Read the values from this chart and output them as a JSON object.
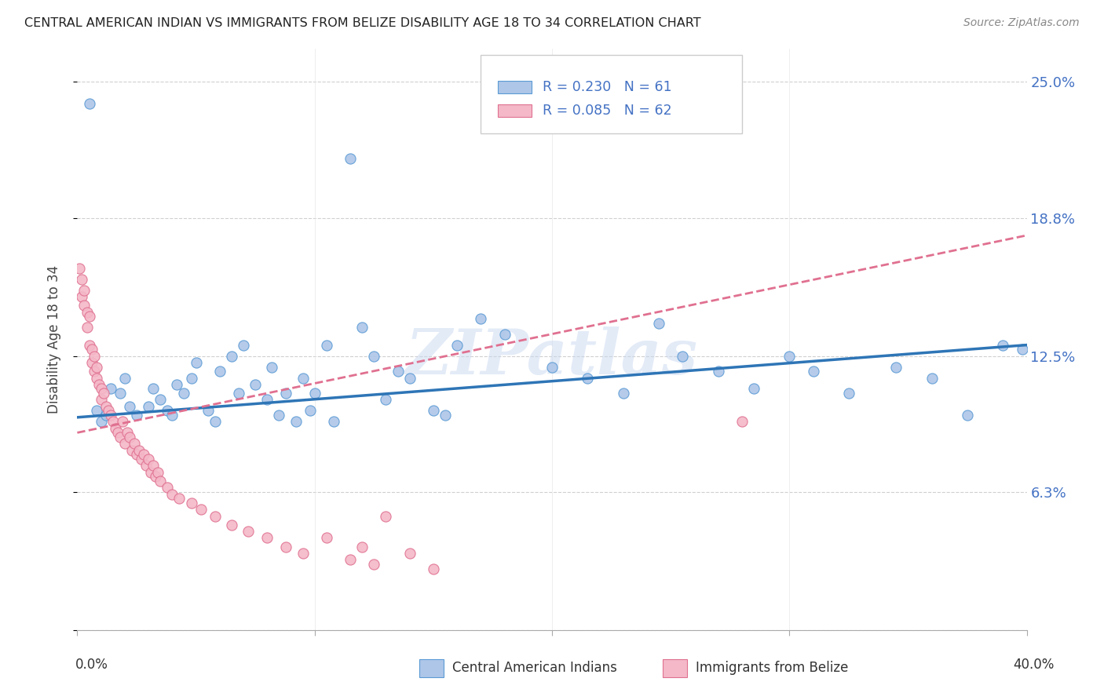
{
  "title": "CENTRAL AMERICAN INDIAN VS IMMIGRANTS FROM BELIZE DISABILITY AGE 18 TO 34 CORRELATION CHART",
  "source": "Source: ZipAtlas.com",
  "legend_label1": "Central American Indians",
  "legend_label2": "Immigrants from Belize",
  "r1": 0.23,
  "n1": 61,
  "r2": 0.085,
  "n2": 62,
  "ytick_vals": [
    0.0,
    0.063,
    0.125,
    0.188,
    0.25
  ],
  "ytick_labels": [
    "",
    "6.3%",
    "12.5%",
    "18.8%",
    "25.0%"
  ],
  "xmin": 0.0,
  "xmax": 0.4,
  "ymin": 0.0,
  "ymax": 0.265,
  "color_blue": "#aec6e8",
  "color_blue_edge": "#5b9bd5",
  "color_blue_line": "#2e75b6",
  "color_pink": "#f4b8c8",
  "color_pink_edge": "#e07090",
  "color_pink_line": "#c05070",
  "color_right_labels": "#4472c4",
  "background": "#ffffff",
  "blue_trend_x0": 0.0,
  "blue_trend_y0": 0.097,
  "blue_trend_x1": 0.4,
  "blue_trend_y1": 0.13,
  "pink_trend_x0": 0.0,
  "pink_trend_y0": 0.09,
  "pink_trend_x1": 0.4,
  "pink_trend_y1": 0.18,
  "blue_x": [
    0.005,
    0.008,
    0.01,
    0.012,
    0.014,
    0.018,
    0.02,
    0.022,
    0.025,
    0.03,
    0.032,
    0.035,
    0.038,
    0.04,
    0.042,
    0.045,
    0.048,
    0.05,
    0.055,
    0.058,
    0.06,
    0.065,
    0.068,
    0.07,
    0.075,
    0.08,
    0.082,
    0.085,
    0.088,
    0.092,
    0.095,
    0.098,
    0.1,
    0.105,
    0.108,
    0.115,
    0.12,
    0.125,
    0.13,
    0.135,
    0.14,
    0.15,
    0.155,
    0.16,
    0.17,
    0.18,
    0.2,
    0.215,
    0.23,
    0.245,
    0.255,
    0.27,
    0.285,
    0.3,
    0.31,
    0.325,
    0.345,
    0.36,
    0.375,
    0.39,
    0.398
  ],
  "blue_y": [
    0.24,
    0.1,
    0.095,
    0.098,
    0.11,
    0.108,
    0.115,
    0.102,
    0.098,
    0.102,
    0.11,
    0.105,
    0.1,
    0.098,
    0.112,
    0.108,
    0.115,
    0.122,
    0.1,
    0.095,
    0.118,
    0.125,
    0.108,
    0.13,
    0.112,
    0.105,
    0.12,
    0.098,
    0.108,
    0.095,
    0.115,
    0.1,
    0.108,
    0.13,
    0.095,
    0.215,
    0.138,
    0.125,
    0.105,
    0.118,
    0.115,
    0.1,
    0.098,
    0.13,
    0.142,
    0.135,
    0.12,
    0.115,
    0.108,
    0.14,
    0.125,
    0.118,
    0.11,
    0.125,
    0.118,
    0.108,
    0.12,
    0.115,
    0.098,
    0.13,
    0.128
  ],
  "pink_x": [
    0.001,
    0.002,
    0.002,
    0.003,
    0.003,
    0.004,
    0.004,
    0.005,
    0.005,
    0.006,
    0.006,
    0.007,
    0.007,
    0.008,
    0.008,
    0.009,
    0.01,
    0.01,
    0.011,
    0.012,
    0.013,
    0.014,
    0.015,
    0.016,
    0.017,
    0.018,
    0.019,
    0.02,
    0.021,
    0.022,
    0.023,
    0.024,
    0.025,
    0.026,
    0.027,
    0.028,
    0.029,
    0.03,
    0.031,
    0.032,
    0.033,
    0.034,
    0.035,
    0.038,
    0.04,
    0.043,
    0.048,
    0.052,
    0.058,
    0.065,
    0.072,
    0.08,
    0.088,
    0.095,
    0.105,
    0.115,
    0.12,
    0.125,
    0.13,
    0.14,
    0.15,
    0.28
  ],
  "pink_y": [
    0.165,
    0.16,
    0.152,
    0.148,
    0.155,
    0.145,
    0.138,
    0.143,
    0.13,
    0.128,
    0.122,
    0.118,
    0.125,
    0.115,
    0.12,
    0.112,
    0.11,
    0.105,
    0.108,
    0.102,
    0.1,
    0.098,
    0.095,
    0.092,
    0.09,
    0.088,
    0.095,
    0.085,
    0.09,
    0.088,
    0.082,
    0.085,
    0.08,
    0.082,
    0.078,
    0.08,
    0.075,
    0.078,
    0.072,
    0.075,
    0.07,
    0.072,
    0.068,
    0.065,
    0.062,
    0.06,
    0.058,
    0.055,
    0.052,
    0.048,
    0.045,
    0.042,
    0.038,
    0.035,
    0.042,
    0.032,
    0.038,
    0.03,
    0.052,
    0.035,
    0.028,
    0.095
  ]
}
